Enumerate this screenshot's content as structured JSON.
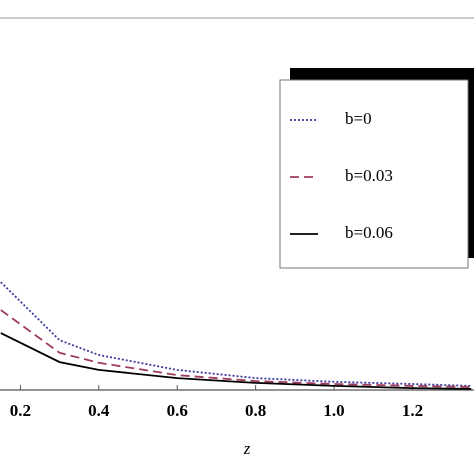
{
  "chart_data": {
    "type": "line",
    "x_label": "z",
    "x": [
      0.15,
      0.3,
      0.4,
      0.6,
      0.8,
      1.0,
      1.2,
      1.35
    ],
    "series": [
      {
        "name": "b=0",
        "color": "#3b3b9e",
        "dash": "dotted",
        "values": [
          0.29,
          0.134,
          0.094,
          0.054,
          0.032,
          0.022,
          0.016,
          0.011
        ]
      },
      {
        "name": "b=0.03",
        "color": "#9e3b5e",
        "dash": "dashed",
        "values": [
          0.215,
          0.1,
          0.073,
          0.04,
          0.024,
          0.016,
          0.011,
          0.008
        ]
      },
      {
        "name": "b=0.06",
        "color": "#000000",
        "dash": "solid",
        "values": [
          0.153,
          0.075,
          0.054,
          0.032,
          0.019,
          0.011,
          0.005,
          0.003
        ]
      }
    ],
    "xlim": [
      0.148,
      1.357
    ],
    "ylim": [
      0,
      1
    ],
    "xticks": [
      0.2,
      0.4,
      0.6,
      0.8,
      {
        "value": 1,
        "label": "1.0"
      },
      0.2,
      1.2
    ]
  }
}
